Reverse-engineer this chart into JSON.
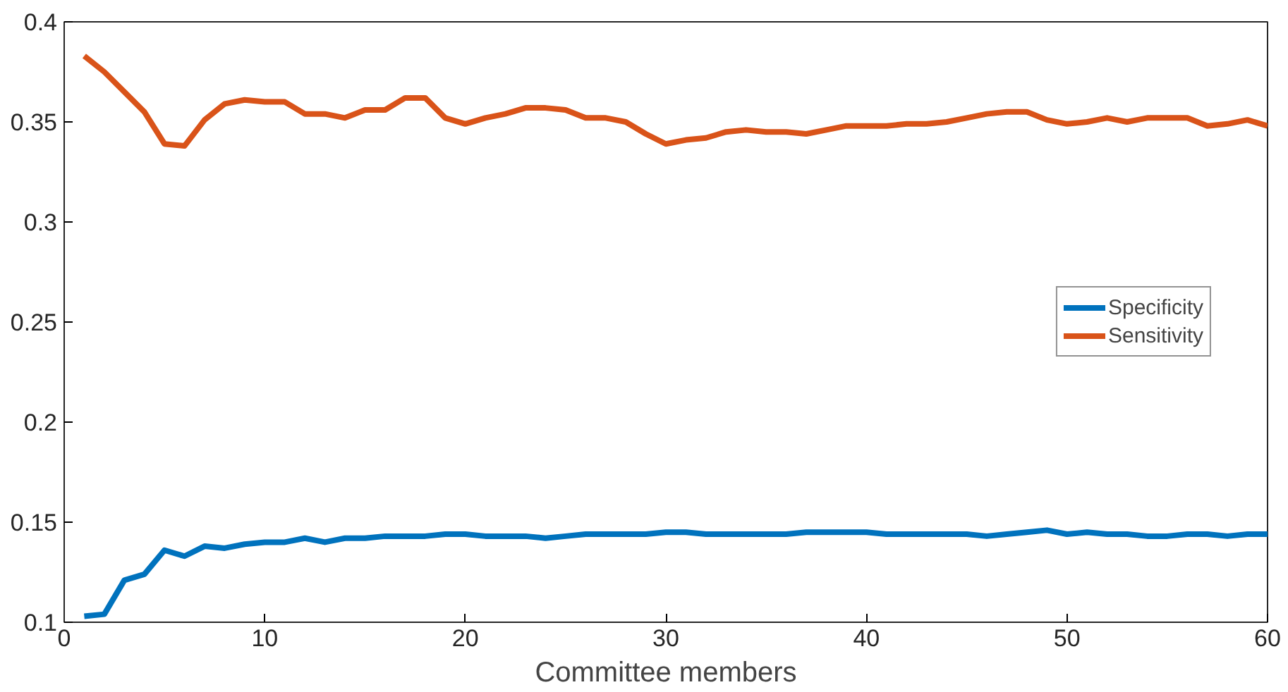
{
  "chart_data": {
    "type": "line",
    "xlabel": "Committee members",
    "x": [
      1,
      2,
      3,
      4,
      5,
      6,
      7,
      8,
      9,
      10,
      11,
      12,
      13,
      14,
      15,
      16,
      17,
      18,
      19,
      20,
      21,
      22,
      23,
      24,
      25,
      26,
      27,
      28,
      29,
      30,
      31,
      32,
      33,
      34,
      35,
      36,
      37,
      38,
      39,
      40,
      41,
      42,
      43,
      44,
      45,
      46,
      47,
      48,
      49,
      50,
      51,
      52,
      53,
      54,
      55,
      56,
      57,
      58,
      59,
      60
    ],
    "series": [
      {
        "name": "Specificity",
        "color": "#0072bd",
        "values": [
          0.103,
          0.104,
          0.121,
          0.124,
          0.136,
          0.133,
          0.138,
          0.137,
          0.139,
          0.14,
          0.14,
          0.142,
          0.14,
          0.142,
          0.142,
          0.143,
          0.143,
          0.143,
          0.144,
          0.144,
          0.143,
          0.143,
          0.143,
          0.142,
          0.143,
          0.144,
          0.144,
          0.144,
          0.144,
          0.145,
          0.145,
          0.144,
          0.144,
          0.144,
          0.144,
          0.144,
          0.145,
          0.145,
          0.145,
          0.145,
          0.144,
          0.144,
          0.144,
          0.144,
          0.144,
          0.143,
          0.144,
          0.145,
          0.146,
          0.144,
          0.145,
          0.144,
          0.144,
          0.143,
          0.143,
          0.144,
          0.144,
          0.143,
          0.144,
          0.144
        ]
      },
      {
        "name": "Sensitivity",
        "color": "#d95319",
        "values": [
          0.383,
          0.375,
          0.365,
          0.355,
          0.339,
          0.338,
          0.351,
          0.359,
          0.361,
          0.36,
          0.36,
          0.354,
          0.354,
          0.352,
          0.356,
          0.356,
          0.362,
          0.362,
          0.352,
          0.349,
          0.352,
          0.354,
          0.357,
          0.357,
          0.356,
          0.352,
          0.352,
          0.35,
          0.344,
          0.339,
          0.341,
          0.342,
          0.345,
          0.346,
          0.345,
          0.345,
          0.344,
          0.346,
          0.348,
          0.348,
          0.348,
          0.349,
          0.349,
          0.35,
          0.352,
          0.354,
          0.355,
          0.355,
          0.351,
          0.349,
          0.35,
          0.352,
          0.35,
          0.352,
          0.352,
          0.352,
          0.348,
          0.349,
          0.351,
          0.348
        ]
      }
    ],
    "xlim": [
      0,
      60
    ],
    "xticks": [
      0,
      10,
      20,
      30,
      40,
      50,
      60
    ],
    "ylim": [
      0.1,
      0.4
    ],
    "yticks": [
      {
        "value": 0.1,
        "label": "0.1"
      },
      {
        "value": 0.15,
        "label": "0.15"
      },
      {
        "value": 0.2,
        "label": "0.2"
      },
      {
        "value": 0.25,
        "label": "0.25"
      },
      {
        "value": 0.3,
        "label": "0.3"
      },
      {
        "value": 0.35,
        "label": "0.35"
      },
      {
        "value": 0.4,
        "label": "0.4"
      }
    ],
    "legend": "right",
    "grid": false,
    "line_style": "solid"
  }
}
